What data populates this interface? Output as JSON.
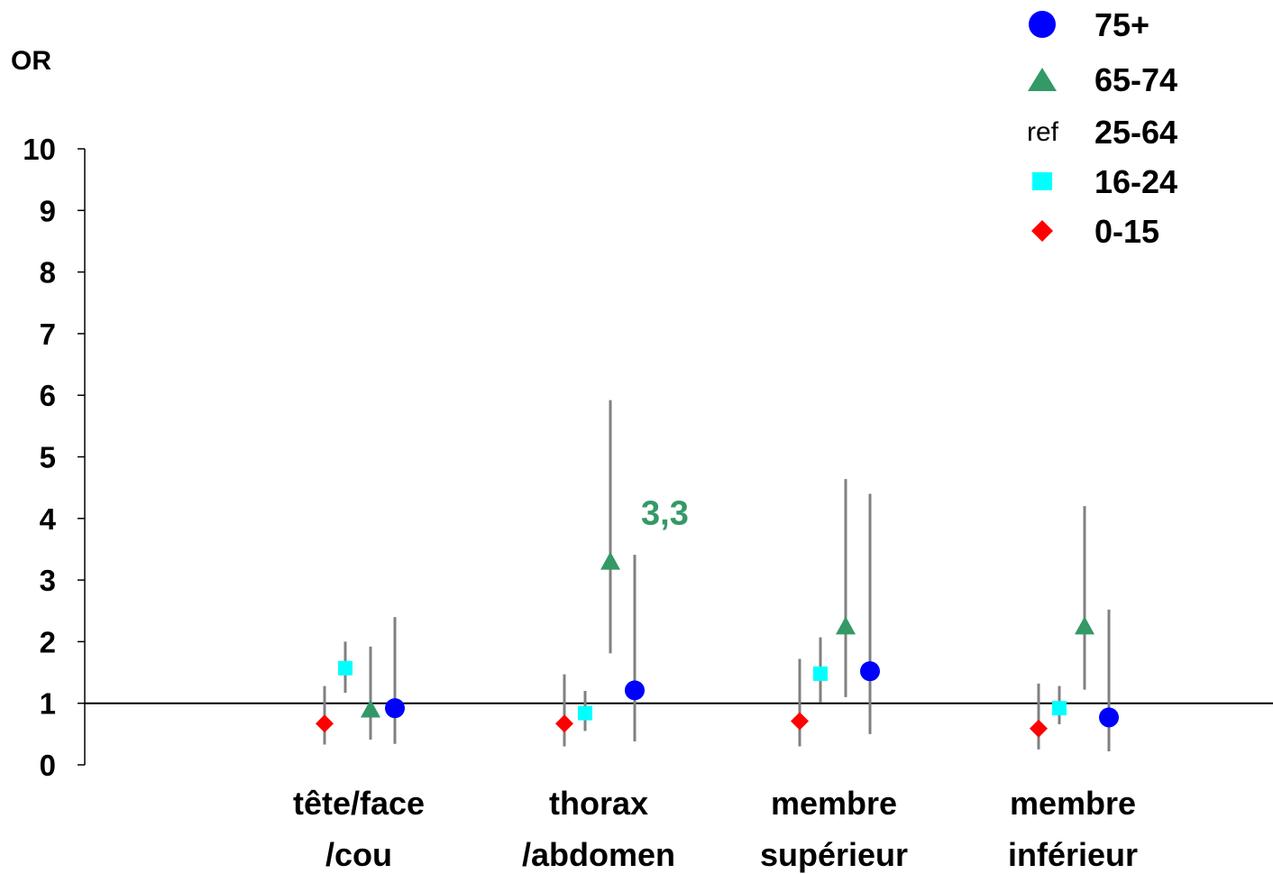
{
  "chart_data": {
    "type": "scatter",
    "ylabel": "OR",
    "ylim": [
      0,
      10
    ],
    "yticks": [
      "0",
      "1",
      "2",
      "3",
      "4",
      "5",
      "6",
      "7",
      "8",
      "9",
      "10"
    ],
    "reference_line": 1,
    "categories": [
      {
        "line1": "tête/face",
        "line2": "/cou"
      },
      {
        "line1": "thorax",
        "line2": "/abdomen"
      },
      {
        "line1": "membre",
        "line2": "supérieur"
      },
      {
        "line1": "membre",
        "line2": "inférieur"
      }
    ],
    "series": [
      {
        "name": "0-15",
        "marker": "diamond",
        "color": "#ff0000",
        "values": [
          0.67,
          0.67,
          0.71,
          0.59
        ],
        "lower": [
          0.33,
          0.3,
          0.3,
          0.25
        ],
        "upper": [
          1.28,
          1.47,
          1.72,
          1.32
        ]
      },
      {
        "name": "16-24",
        "marker": "square",
        "color": "#00ffff",
        "values": [
          1.57,
          0.84,
          1.48,
          0.92
        ],
        "lower": [
          1.17,
          0.55,
          1.01,
          0.66
        ],
        "upper": [
          2.0,
          1.2,
          2.07,
          1.28
        ]
      },
      {
        "name": "65-74",
        "marker": "triangle",
        "color": "#339966",
        "values": [
          0.9,
          3.3,
          2.25,
          2.25
        ],
        "lower": [
          0.41,
          1.81,
          1.1,
          1.22
        ],
        "upper": [
          1.92,
          5.92,
          4.64,
          4.2
        ]
      },
      {
        "name": "75+",
        "marker": "circle",
        "color": "#0000ff",
        "values": [
          0.92,
          1.21,
          1.52,
          0.77
        ],
        "lower": [
          0.34,
          0.38,
          0.5,
          0.22
        ],
        "upper": [
          2.4,
          3.41,
          4.4,
          2.52
        ]
      }
    ],
    "annotation": {
      "text": "3,3",
      "color": "#339966"
    },
    "legend": {
      "position": "top-right",
      "entries": [
        {
          "name": "75+",
          "marker": "circle",
          "color": "#0000ff"
        },
        {
          "name": "65-74",
          "marker": "triangle",
          "color": "#339966"
        },
        {
          "name": "25-64",
          "marker": "text",
          "marker_text": "ref"
        },
        {
          "name": "16-24",
          "marker": "square",
          "color": "#00ffff"
        },
        {
          "name": "0-15",
          "marker": "diamond",
          "color": "#ff0000"
        }
      ]
    }
  }
}
